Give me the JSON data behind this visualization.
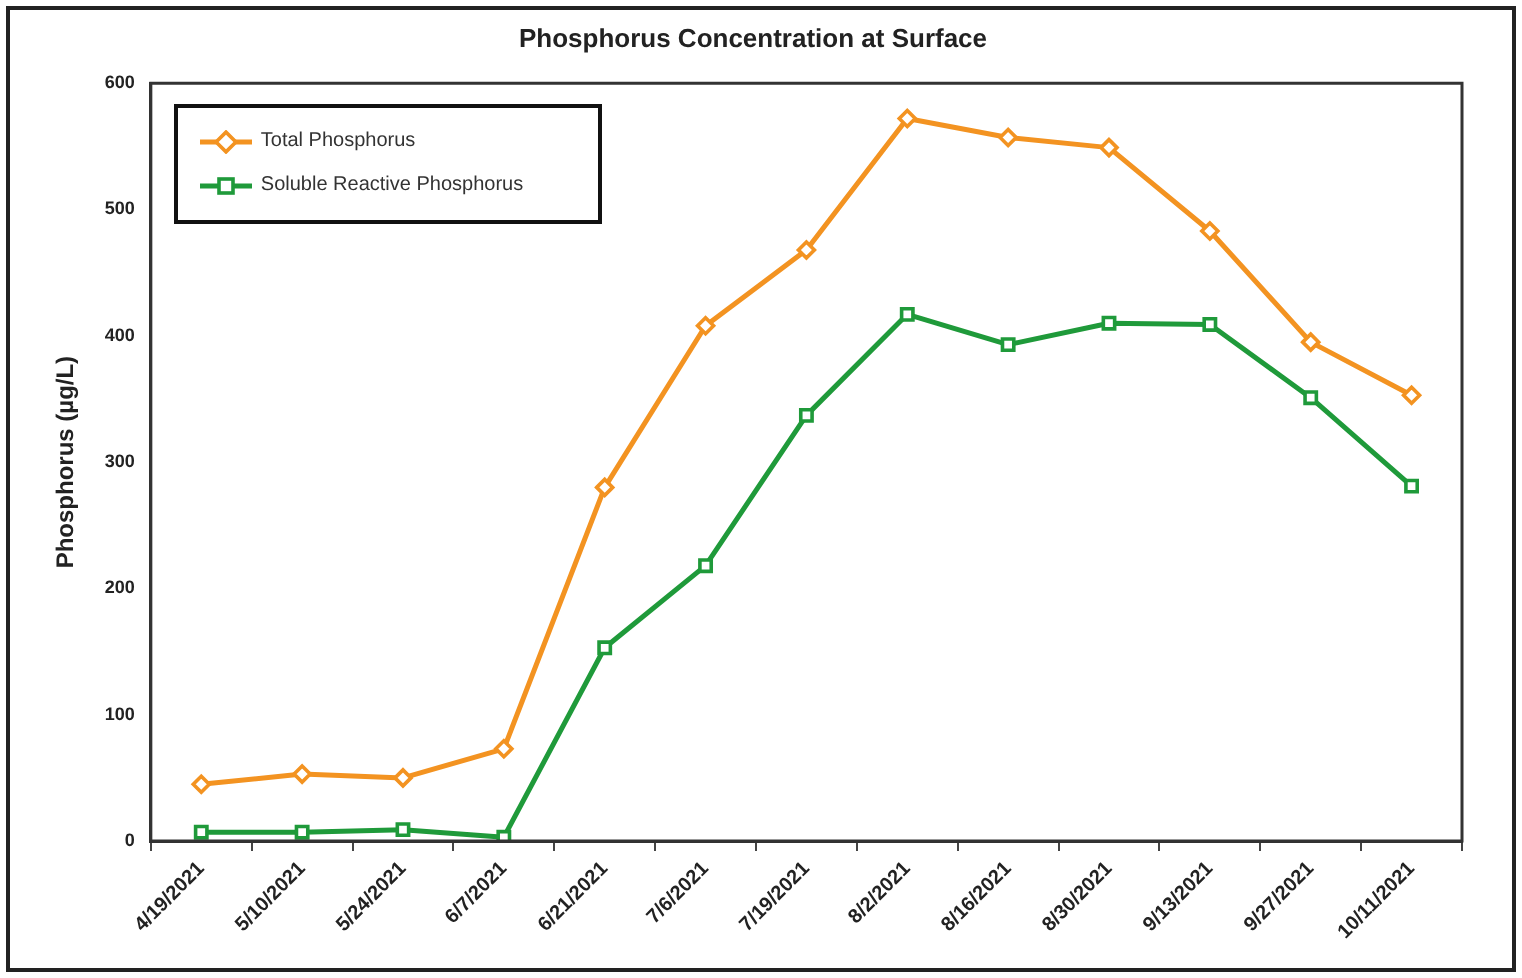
{
  "chart_data": {
    "type": "line",
    "title": "Phosphorus Concentration at Surface",
    "ylabel": "Phosphorus (µg/L)",
    "categories": [
      "4/19/2021",
      "5/10/2021",
      "5/24/2021",
      "6/7/2021",
      "6/21/2021",
      "7/6/2021",
      "7/19/2021",
      "8/2/2021",
      "8/16/2021",
      "8/30/2021",
      "9/13/2021",
      "9/27/2021",
      "10/11/2021"
    ],
    "series": [
      {
        "name": "Total Phosphorus",
        "color": "#f39321",
        "marker": "diamond",
        "values": [
          45,
          53,
          50,
          73,
          280,
          408,
          468,
          572,
          557,
          549,
          483,
          395,
          353
        ]
      },
      {
        "name": "Soluble Reactive Phosphorus",
        "color": "#1f9a3a",
        "marker": "square",
        "values": [
          7,
          7,
          9,
          3,
          153,
          218,
          337,
          417,
          393,
          410,
          409,
          351,
          281
        ]
      }
    ],
    "ylim": [
      0,
      600
    ],
    "yticks": [
      0,
      100,
      200,
      300,
      400,
      500,
      600
    ],
    "grid": false,
    "legend": "top left",
    "line_style": "solid"
  }
}
